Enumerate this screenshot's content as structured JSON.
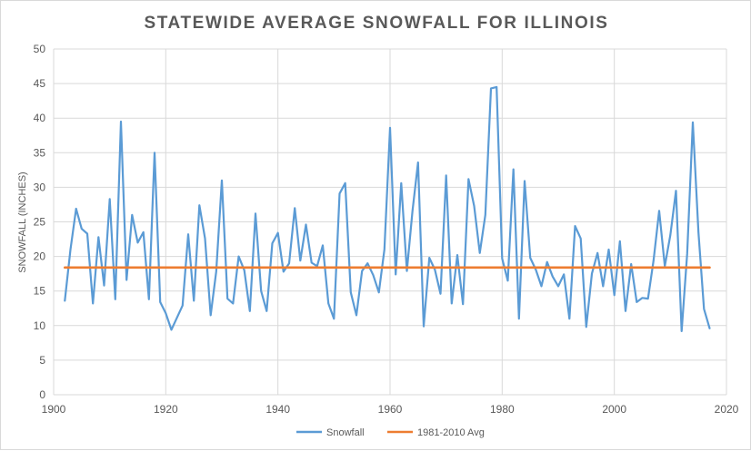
{
  "chart_data": {
    "type": "line",
    "title": "STATEWIDE AVERAGE SNOWFALL FOR ILLINOIS",
    "xlabel": "",
    "ylabel": "SNOWFALL (INCHES)",
    "xlim": [
      1900,
      2020
    ],
    "ylim": [
      0,
      50
    ],
    "x_ticks": [
      1900,
      1920,
      1940,
      1960,
      1980,
      2000,
      2020
    ],
    "y_ticks": [
      0,
      5,
      10,
      15,
      20,
      25,
      30,
      35,
      40,
      45,
      50
    ],
    "grid": true,
    "legend_position": "bottom",
    "series": [
      {
        "name": "Snowfall",
        "color": "#5b9bd5",
        "x": [
          1902,
          1903,
          1904,
          1905,
          1906,
          1907,
          1908,
          1909,
          1910,
          1911,
          1912,
          1913,
          1914,
          1915,
          1916,
          1917,
          1918,
          1919,
          1920,
          1921,
          1923,
          1924,
          1925,
          1926,
          1927,
          1928,
          1929,
          1930,
          1931,
          1932,
          1933,
          1934,
          1935,
          1936,
          1937,
          1938,
          1939,
          1940,
          1941,
          1942,
          1943,
          1944,
          1945,
          1946,
          1947,
          1948,
          1949,
          1950,
          1951,
          1952,
          1953,
          1954,
          1955,
          1956,
          1957,
          1958,
          1959,
          1960,
          1961,
          1962,
          1963,
          1964,
          1965,
          1966,
          1967,
          1968,
          1969,
          1970,
          1971,
          1972,
          1973,
          1974,
          1975,
          1976,
          1977,
          1978,
          1979,
          1980,
          1981,
          1982,
          1983,
          1984,
          1985,
          1986,
          1987,
          1988,
          1989,
          1990,
          1991,
          1992,
          1993,
          1994,
          1995,
          1996,
          1997,
          1998,
          1999,
          2000,
          2001,
          2002,
          2003,
          2004,
          2005,
          2006,
          2007,
          2008,
          2009,
          2010,
          2011,
          2012,
          2013,
          2014,
          2015,
          2016,
          2017
        ],
        "values": [
          13.6,
          21.0,
          26.9,
          24.0,
          23.3,
          13.2,
          22.8,
          15.8,
          28.3,
          13.8,
          39.5,
          16.6,
          26.0,
          22.0,
          23.5,
          13.8,
          35.0,
          13.4,
          11.8,
          9.4,
          12.9,
          23.2,
          13.6,
          27.4,
          22.6,
          11.5,
          17.8,
          31.0,
          13.9,
          13.2,
          20.0,
          18.0,
          12.1,
          26.2,
          15.0,
          12.1,
          21.9,
          23.4,
          17.8,
          19.0,
          27.0,
          19.4,
          24.6,
          19.1,
          18.6,
          21.6,
          13.2,
          11.0,
          29.1,
          30.6,
          14.8,
          11.5,
          17.9,
          19.0,
          17.3,
          14.8,
          21.0,
          38.6,
          17.4,
          30.6,
          17.9,
          26.6,
          33.6,
          9.9,
          19.8,
          18.1,
          14.6,
          31.7,
          13.2,
          20.2,
          13.1,
          31.2,
          27.3,
          20.5,
          26.0,
          44.3,
          44.5,
          19.7,
          16.5,
          32.6,
          11.0,
          30.9,
          19.8,
          18.1,
          15.7,
          19.2,
          17.1,
          15.7,
          17.4,
          11.0,
          24.4,
          22.6,
          9.8,
          17.5,
          20.5,
          15.7,
          21.0,
          14.4,
          22.2,
          12.1,
          18.9,
          13.4,
          14.0,
          13.9,
          19.4,
          26.6,
          18.6,
          23.1,
          29.5,
          9.2,
          20.4,
          39.4,
          23.5,
          12.4,
          9.6
        ]
      },
      {
        "name": "1981-2010 Avg",
        "color": "#ed7d31",
        "x": [
          1902,
          2017
        ],
        "values": [
          18.4,
          18.4
        ]
      }
    ]
  }
}
